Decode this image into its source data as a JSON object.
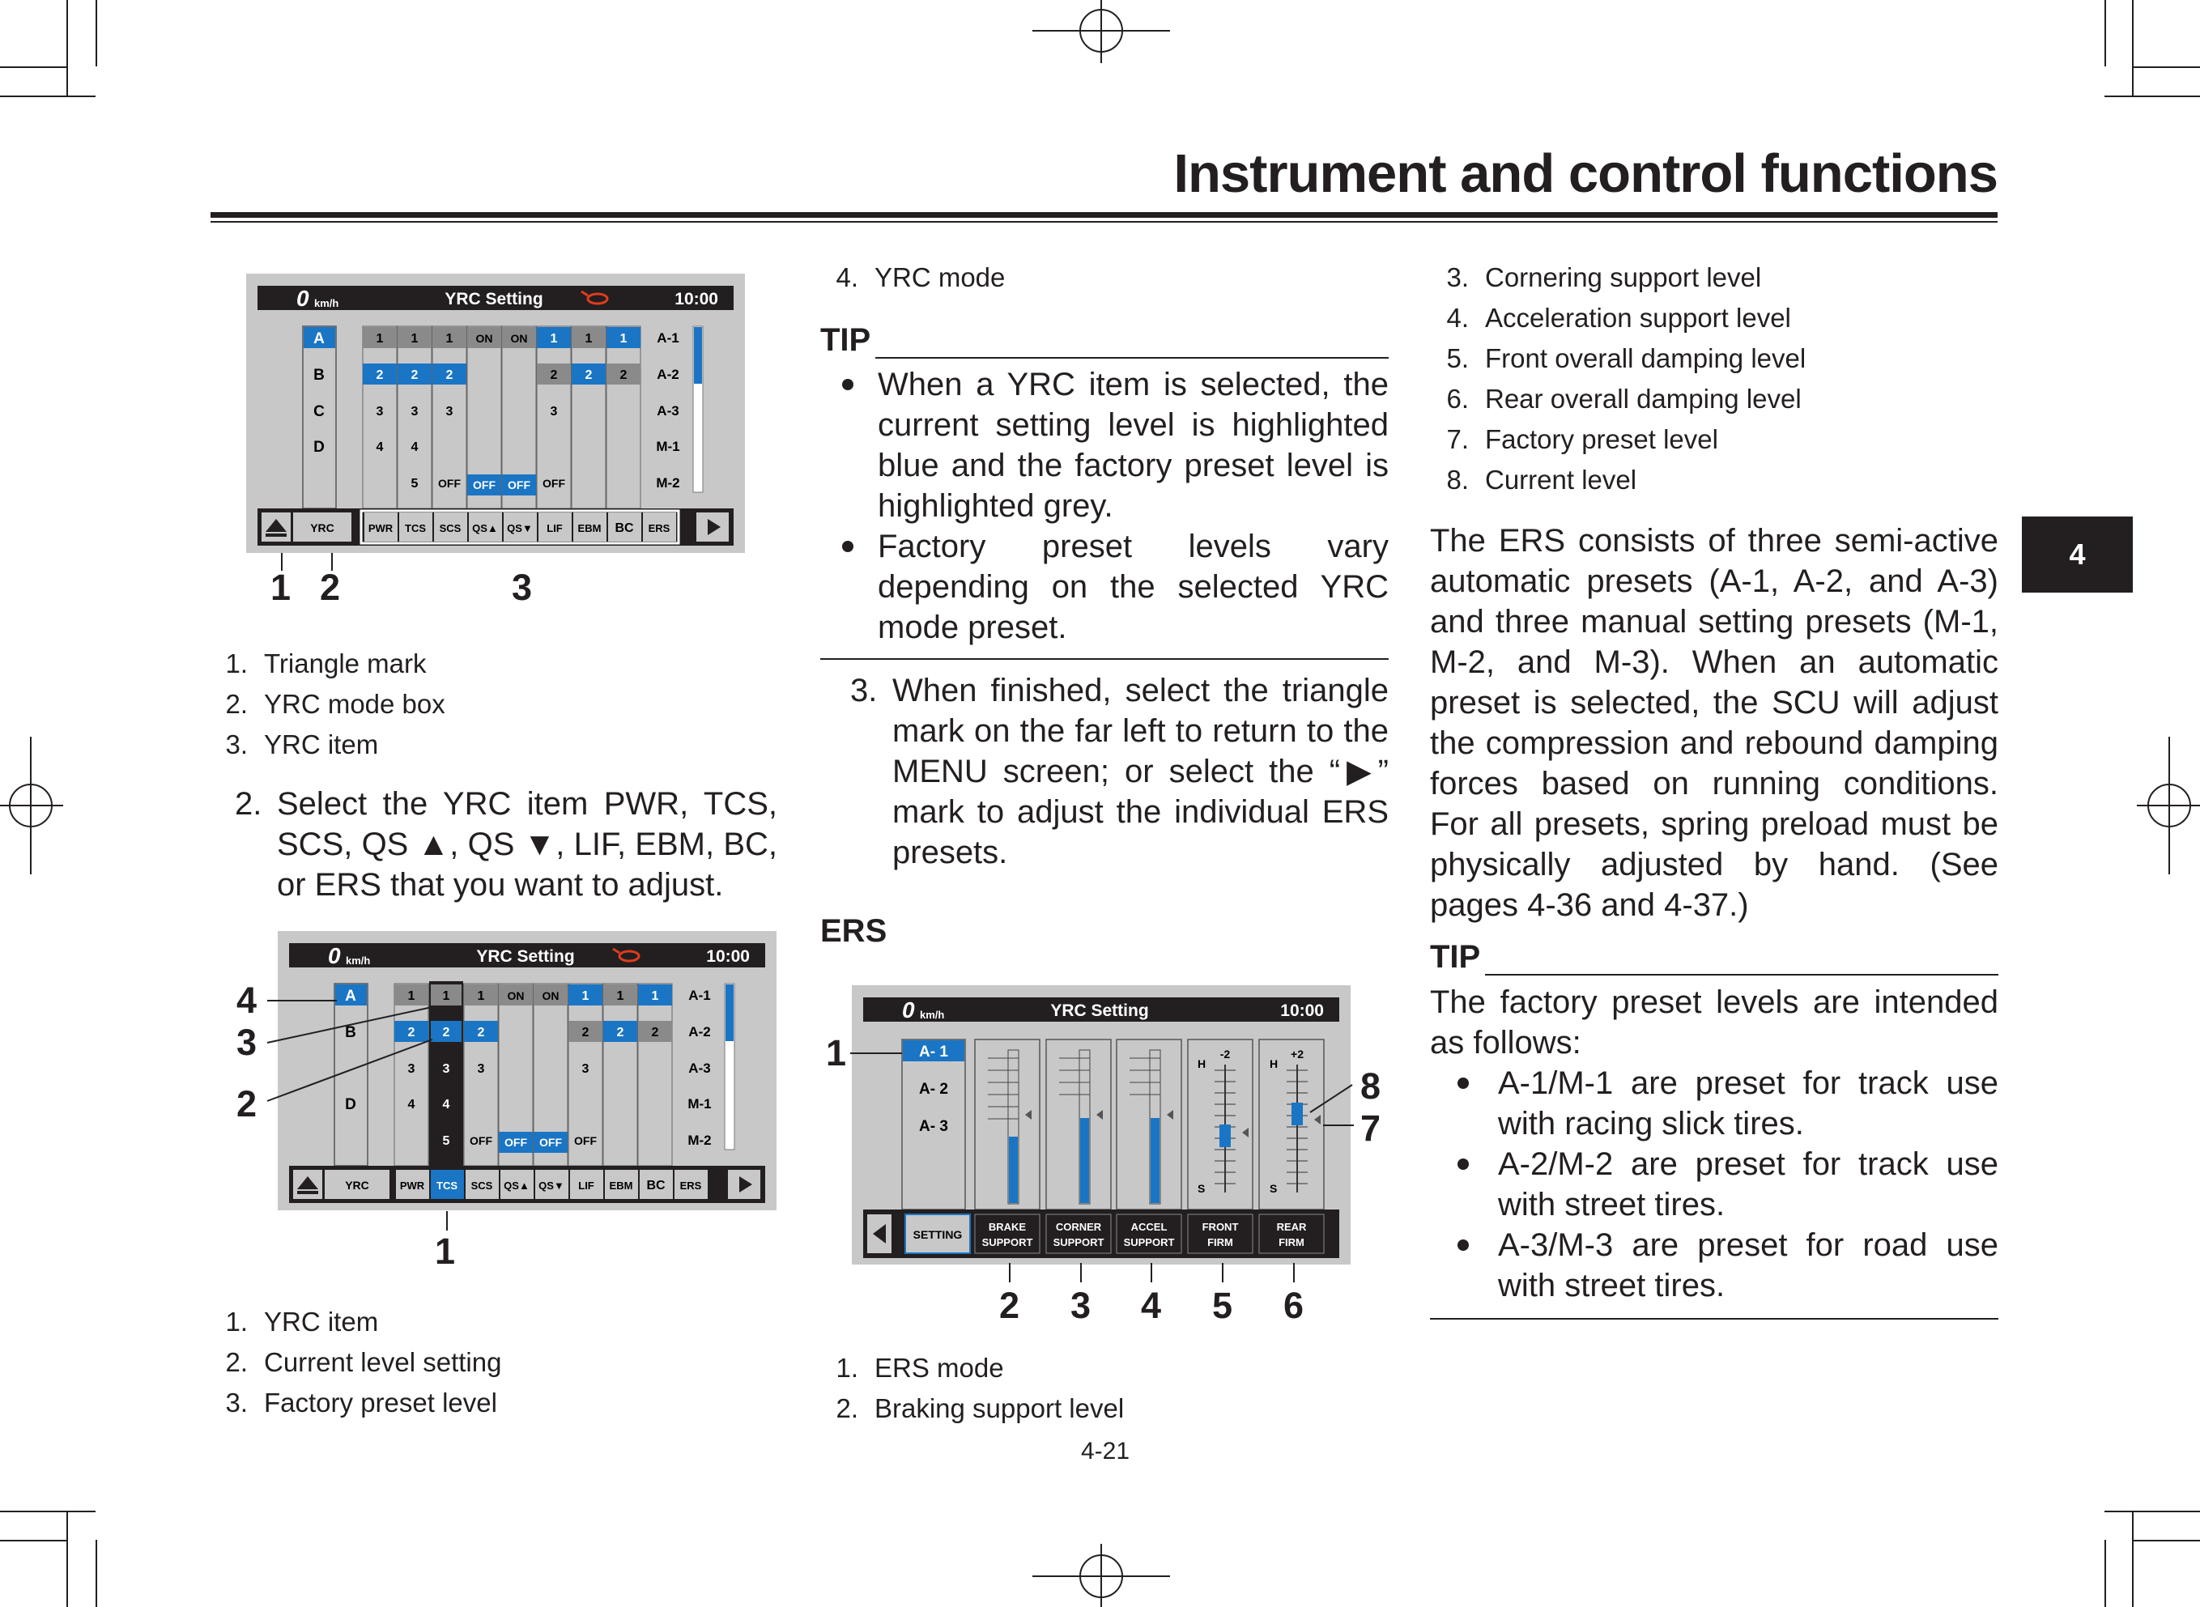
{
  "header": {
    "title": "Instrument and control functions"
  },
  "chapter_tab": "4",
  "page_number": "4-21",
  "screen": {
    "speed": "0",
    "unit": "km/h",
    "title": "YRC Setting",
    "clock": "10:00"
  },
  "fig1": {
    "modes": [
      "A",
      "B",
      "C",
      "D"
    ],
    "presets": [
      "A-1",
      "A-2",
      "A-3",
      "M-1",
      "M-2"
    ],
    "tabs": [
      "YRC",
      "PWR",
      "TCS",
      "SCS",
      "QS▲",
      "QS▼",
      "LIF",
      "EBM",
      "BC",
      "ERS"
    ],
    "callouts": [
      "1",
      "2",
      "3"
    ]
  },
  "fig1_legend": [
    {
      "n": "1.",
      "t": "Triangle mark"
    },
    {
      "n": "2.",
      "t": "YRC mode box"
    },
    {
      "n": "3.",
      "t": "YRC item"
    }
  ],
  "step2": {
    "n": "2.",
    "t": "Select the YRC item PWR, TCS, SCS, QS ▲, QS ▼, LIF, EBM, BC, or ERS that you want to adjust."
  },
  "fig2": {
    "callouts": [
      "4",
      "3",
      "2",
      "1"
    ]
  },
  "fig2_legend": [
    {
      "n": "1.",
      "t": "YRC item"
    },
    {
      "n": "2.",
      "t": "Current level setting"
    },
    {
      "n": "3.",
      "t": "Factory preset level"
    }
  ],
  "col2_top": {
    "n": "4.",
    "t": "YRC mode"
  },
  "tip1": {
    "label": "TIP",
    "bullets": [
      "When a YRC item is selected, the current setting level is highlighted blue and the factory preset level is highlighted grey.",
      "Factory preset levels vary depending on the selected YRC mode preset."
    ]
  },
  "step3": {
    "n": "3.",
    "t": "When finished, select the triangle mark on the far left to return to the MENU screen; or select the “▶” mark to adjust the individual ERS presets."
  },
  "ers_heading": "ERS",
  "fig3": {
    "modes": [
      "A- 1",
      "A- 2",
      "A- 3"
    ],
    "tabs": [
      "SETTING",
      "BRAKE SUPPORT",
      "CORNER SUPPORT",
      "ACCEL SUPPORT",
      "FRONT FIRM",
      "REAR FIRM"
    ],
    "scale": {
      "hard": "H",
      "soft": "S",
      "front_val": "-2",
      "rear_val": "+2"
    },
    "callouts": [
      "1",
      "2",
      "3",
      "4",
      "5",
      "6",
      "7",
      "8"
    ]
  },
  "fig3_legend": [
    {
      "n": "1.",
      "t": "ERS mode"
    },
    {
      "n": "2.",
      "t": "Braking support level"
    }
  ],
  "col3_list": [
    {
      "n": "3.",
      "t": "Cornering support level"
    },
    {
      "n": "4.",
      "t": "Acceleration support level"
    },
    {
      "n": "5.",
      "t": "Front overall damping level"
    },
    {
      "n": "6.",
      "t": "Rear overall damping level"
    },
    {
      "n": "7.",
      "t": "Factory preset level"
    },
    {
      "n": "8.",
      "t": "Current level"
    }
  ],
  "ers_para": "The ERS consists of three semi-active automatic presets (A-1, A-2, and A-3) and three manual setting presets (M-1, M-2, and M-3). When an automatic preset is selected, the SCU will adjust the compression and rebound damping forces based on running conditions. For all presets, spring preload must be physically adjusted by hand. (See pages 4-36 and 4-37.)",
  "tip2": {
    "label": "TIP",
    "intro": "The factory preset levels are intended as follows:",
    "bullets": [
      "A-1/M-1 are preset for track use with racing slick tires.",
      "A-2/M-2 are preset for track use with street tires.",
      "A-3/M-3 are preset for road use with street tires."
    ]
  },
  "colors": {
    "blue": "#1a75c4",
    "grey": "#7f7f7f",
    "panel": "#c8c8c8"
  }
}
